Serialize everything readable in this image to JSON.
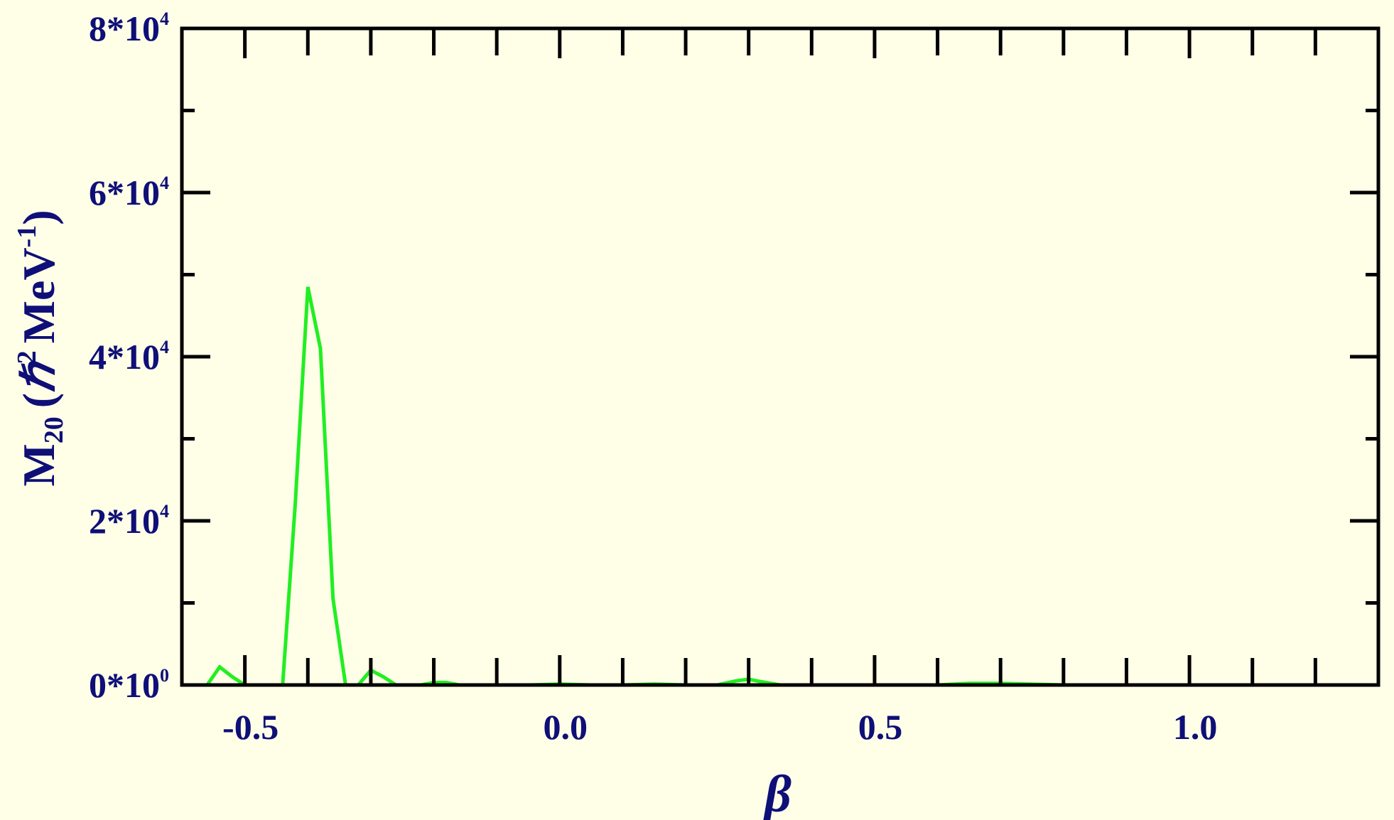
{
  "chart_data": {
    "type": "line",
    "xlabel": "β",
    "ylabel": {
      "main": "M",
      "sub": "20",
      "open": "(",
      "hbar": "ℏ",
      "hbar_sup": "2",
      "unit": "MeV",
      "unit_sup": "-1",
      "close": ")"
    },
    "xlim": [
      -0.6,
      1.3
    ],
    "ylim": [
      0,
      80000
    ],
    "x_ticks": [
      {
        "value": -0.5,
        "label": "-0.5"
      },
      {
        "value": 0.0,
        "label": "0.0"
      },
      {
        "value": 0.5,
        "label": "0.5"
      },
      {
        "value": 1.0,
        "label": "1.0"
      }
    ],
    "x_minor_step": 0.1,
    "y_ticks": [
      {
        "value": 0,
        "mantissa": "0*10",
        "exp": "0"
      },
      {
        "value": 20000,
        "mantissa": "2*10",
        "exp": "4"
      },
      {
        "value": 40000,
        "mantissa": "4*10",
        "exp": "4"
      },
      {
        "value": 60000,
        "mantissa": "6*10",
        "exp": "4"
      },
      {
        "value": 80000,
        "mantissa": "8*10",
        "exp": "4"
      }
    ],
    "y_minor_step": 10000,
    "grid": false,
    "colors": {
      "background": "#FFFFE8",
      "axes": "#000000",
      "text": "#0F0F78",
      "line": "#22EE22"
    },
    "series": [
      {
        "x": [
          -0.58,
          -0.56,
          -0.54,
          -0.52,
          -0.5,
          -0.48,
          -0.46,
          -0.44,
          -0.42,
          -0.4,
          -0.38,
          -0.36,
          -0.34,
          -0.32,
          -0.3,
          -0.28,
          -0.26,
          -0.24,
          -0.22,
          -0.2,
          -0.18,
          -0.16,
          -0.14,
          -0.1,
          -0.05,
          0.0,
          0.05,
          0.1,
          0.15,
          0.2,
          0.25,
          0.28,
          0.3,
          0.32,
          0.35,
          0.4,
          0.5,
          0.6,
          0.65,
          0.7,
          0.8,
          0.9,
          1.0,
          1.1,
          1.2
        ],
        "y": [
          0,
          0,
          2200,
          1000,
          0,
          0,
          0,
          0,
          22000,
          48500,
          41000,
          10500,
          0,
          0,
          1800,
          1000,
          0,
          0,
          0,
          300,
          300,
          0,
          0,
          0,
          0,
          100,
          0,
          0,
          100,
          0,
          0,
          500,
          700,
          400,
          0,
          0,
          0,
          0,
          200,
          200,
          0,
          0,
          0,
          0,
          0
        ]
      }
    ]
  }
}
